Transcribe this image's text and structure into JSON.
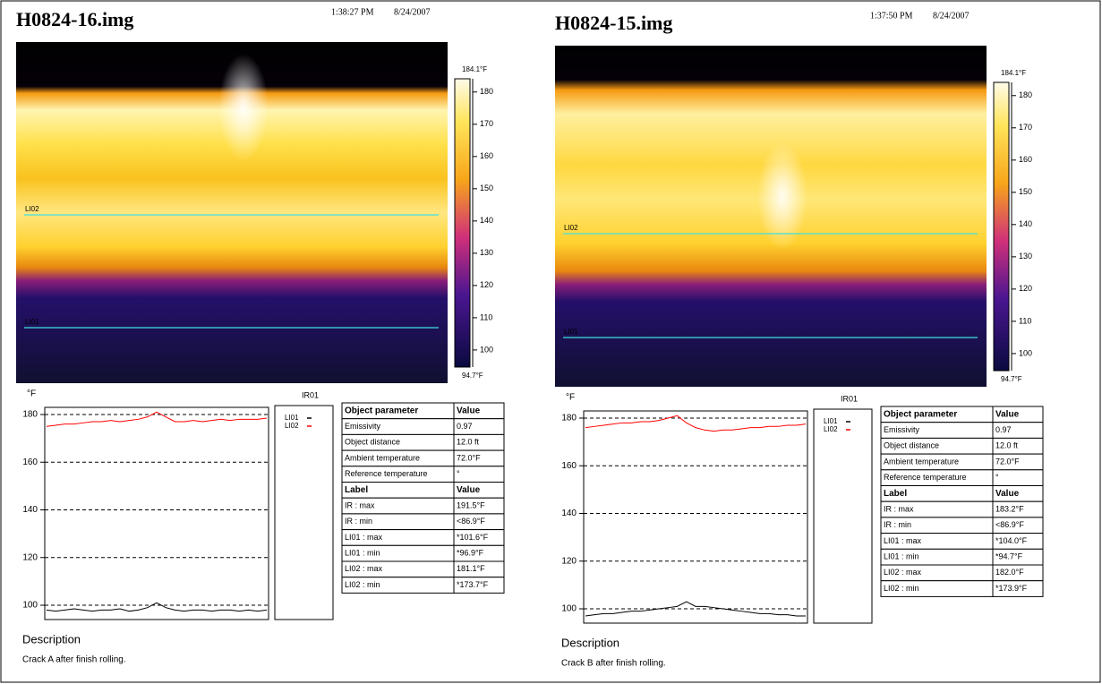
{
  "panels": [
    {
      "title": "H0824-16.img",
      "time": "1:38:27 PM",
      "date": "8/24/2007",
      "image_lines": [
        "LI02",
        "LI01"
      ],
      "scale": {
        "ticks": [
          180,
          170,
          160,
          150,
          140,
          130,
          120,
          110,
          100
        ],
        "ends": [
          {
            "value": 184.1,
            "label": "184.1°F"
          },
          {
            "value": 94.7,
            "label": "94.7°F"
          }
        ]
      },
      "plot": {
        "unit": "°F",
        "title": "IR01",
        "ylim": [
          94,
          183
        ],
        "yticks": [
          180,
          160,
          140,
          120,
          100
        ],
        "series": [
          {
            "name": "LI01",
            "color": "#000000",
            "values": [
              98,
              97.5,
              98,
              98.5,
              98,
              97.5,
              98,
              98,
              98.5,
              97.5,
              98,
              99,
              101,
              99,
              98,
              97.5,
              98,
              98,
              97.5,
              98,
              98,
              97.5,
              98,
              97.5,
              98
            ]
          },
          {
            "name": "LI02",
            "color": "#ff0000",
            "values": [
              175,
              175.5,
              176,
              176,
              176.5,
              177,
              177,
              177.5,
              177,
              177.5,
              178,
              179,
              181,
              179,
              177,
              177,
              177.5,
              177,
              177.5,
              178,
              177.5,
              178,
              178,
              178,
              178.5
            ]
          }
        ]
      },
      "table": {
        "rows": [
          [
            "Object parameter",
            "Value"
          ],
          [
            "Emissivity",
            "0.97"
          ],
          [
            "Object distance",
            "12.0 ft"
          ],
          [
            "Ambient temperature",
            "72.0°F"
          ],
          [
            "Reference temperature",
            "°"
          ],
          [
            "Label",
            "Value"
          ],
          [
            "IR : max",
            "191.5°F"
          ],
          [
            "IR : min",
            "<86.9°F"
          ],
          [
            "LI01 : max",
            "*101.6°F"
          ],
          [
            "LI01 : min",
            "*96.9°F"
          ],
          [
            "LI02 : max",
            "181.1°F"
          ],
          [
            "LI02 : min",
            "*173.7°F"
          ]
        ]
      },
      "description": {
        "heading": "Description",
        "text": "Crack A after finish rolling."
      }
    },
    {
      "title": "H0824-15.img",
      "time": "1:37:50 PM",
      "date": "8/24/2007",
      "image_lines": [
        "LI02",
        "LI01"
      ],
      "scale": {
        "ticks": [
          180,
          170,
          160,
          150,
          140,
          130,
          120,
          110,
          100
        ],
        "ends": [
          {
            "value": 184.1,
            "label": "184.1°F"
          },
          {
            "value": 94.7,
            "label": "94.7°F"
          }
        ]
      },
      "plot": {
        "unit": "°F",
        "title": "IR01",
        "ylim": [
          94,
          183
        ],
        "yticks": [
          180,
          160,
          140,
          120,
          100
        ],
        "series": [
          {
            "name": "LI01",
            "color": "#000000",
            "values": [
              97,
              97.5,
              98,
              98,
              98.5,
              99,
              99,
              99.5,
              100,
              100.5,
              101,
              103,
              101,
              101,
              100.5,
              100,
              99.5,
              99,
              98.5,
              98,
              98,
              97.5,
              97.5,
              97,
              97
            ]
          },
          {
            "name": "LI02",
            "color": "#ff0000",
            "values": [
              176,
              176.5,
              177,
              177.5,
              178,
              178,
              178.5,
              178.5,
              179,
              180,
              181,
              178,
              176,
              175,
              174.5,
              175,
              175,
              175.5,
              176,
              176,
              176.5,
              176.5,
              177,
              177,
              177.5
            ]
          }
        ]
      },
      "table": {
        "rows": [
          [
            "Object parameter",
            "Value"
          ],
          [
            "Emissivity",
            "0.97"
          ],
          [
            "Object distance",
            "12.0 ft"
          ],
          [
            "Ambient temperature",
            "72.0°F"
          ],
          [
            "Reference temperature",
            "°"
          ],
          [
            "Label",
            "Value"
          ],
          [
            "IR : max",
            "183.2°F"
          ],
          [
            "IR : min",
            "<86.9°F"
          ],
          [
            "LI01 : max",
            "*104.0°F"
          ],
          [
            "LI01 : min",
            "*94.7°F"
          ],
          [
            "LI02 : max",
            "182.0°F"
          ],
          [
            "LI02 : min",
            "*173.9°F"
          ]
        ]
      },
      "description": {
        "heading": "Description",
        "text": "Crack B after finish rolling."
      }
    }
  ]
}
